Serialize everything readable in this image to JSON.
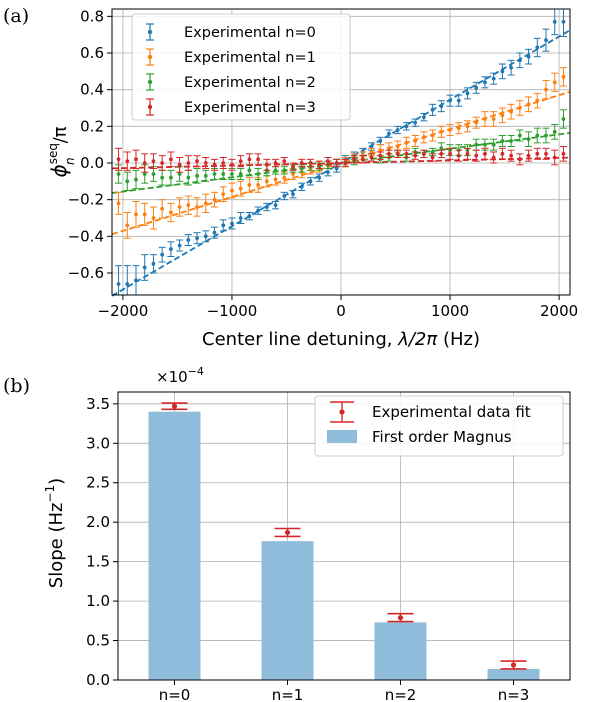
{
  "panel_a_label": "(a)",
  "panel_b_label": "(b)",
  "colors": {
    "n0": "#1f77b4",
    "n1": "#ff7f0e",
    "n2": "#2ca02c",
    "n3": "#d62728",
    "bar": "#8fbcdb",
    "grid": "#b0b0b0"
  },
  "chart_data": [
    {
      "type": "scatter",
      "xlabel_text": "Center line detuning, ",
      "xlabel_math": "λ/2π",
      "xlabel_unit": " (Hz)",
      "ylabel_main": "ϕ",
      "ylabel_sup": "seq",
      "ylabel_sub": "n",
      "ylabel_tail": "/π",
      "xlim": [
        -2100,
        2100
      ],
      "ylim": [
        -0.72,
        0.84
      ],
      "xticks": [
        -2000,
        -1000,
        0,
        1000,
        2000
      ],
      "xtick_labels": [
        "−2000",
        "−1000",
        "0",
        "1000",
        "2000"
      ],
      "yticks": [
        -0.6,
        -0.4,
        -0.2,
        0.0,
        0.2,
        0.4,
        0.6,
        0.8
      ],
      "ytick_labels": [
        "−0.6",
        "−0.4",
        "−0.2",
        "0.0",
        "0.2",
        "0.4",
        "0.6",
        "0.8"
      ],
      "grid": true,
      "legend_position": "top-left",
      "series": [
        {
          "name": "Experimental n=0",
          "color": "#1f77b4",
          "slope": 0.000345,
          "x": [
            -2040,
            -1960,
            -1880,
            -1800,
            -1720,
            -1640,
            -1560,
            -1480,
            -1400,
            -1320,
            -1240,
            -1160,
            -1080,
            -1000,
            -920,
            -840,
            -760,
            -680,
            -600,
            -520,
            -440,
            -360,
            -280,
            -200,
            -120,
            -40,
            40,
            120,
            200,
            280,
            360,
            440,
            520,
            600,
            680,
            760,
            840,
            920,
            1000,
            1080,
            1160,
            1240,
            1320,
            1400,
            1480,
            1560,
            1640,
            1720,
            1800,
            1880,
            1960,
            2040
          ],
          "y": [
            -0.66,
            -0.66,
            -0.64,
            -0.57,
            -0.55,
            -0.5,
            -0.47,
            -0.45,
            -0.42,
            -0.41,
            -0.4,
            -0.38,
            -0.34,
            -0.33,
            -0.3,
            -0.29,
            -0.26,
            -0.24,
            -0.23,
            -0.18,
            -0.17,
            -0.13,
            -0.1,
            -0.08,
            -0.05,
            -0.03,
            0.02,
            0.04,
            0.06,
            0.09,
            0.12,
            0.16,
            0.18,
            0.2,
            0.22,
            0.25,
            0.29,
            0.31,
            0.34,
            0.34,
            0.38,
            0.41,
            0.44,
            0.46,
            0.5,
            0.52,
            0.56,
            0.58,
            0.63,
            0.67,
            0.77,
            0.77
          ],
          "err": [
            0.1,
            0.1,
            0.08,
            0.07,
            0.05,
            0.04,
            0.04,
            0.03,
            0.03,
            0.03,
            0.03,
            0.03,
            0.03,
            0.03,
            0.03,
            0.02,
            0.02,
            0.02,
            0.02,
            0.02,
            0.02,
            0.02,
            0.02,
            0.02,
            0.02,
            0.02,
            0.02,
            0.02,
            0.02,
            0.02,
            0.02,
            0.02,
            0.02,
            0.02,
            0.02,
            0.02,
            0.03,
            0.03,
            0.03,
            0.03,
            0.03,
            0.03,
            0.03,
            0.03,
            0.04,
            0.04,
            0.04,
            0.04,
            0.05,
            0.06,
            0.07,
            0.08
          ]
        },
        {
          "name": "Experimental n=1",
          "color": "#ff7f0e",
          "slope": 0.000185,
          "x": [
            -2040,
            -1960,
            -1880,
            -1800,
            -1720,
            -1640,
            -1560,
            -1480,
            -1400,
            -1320,
            -1240,
            -1160,
            -1080,
            -1000,
            -920,
            -840,
            -760,
            -680,
            -600,
            -520,
            -440,
            -360,
            -280,
            -200,
            -120,
            -40,
            40,
            120,
            200,
            280,
            360,
            440,
            520,
            600,
            680,
            760,
            840,
            920,
            1000,
            1080,
            1160,
            1240,
            1320,
            1400,
            1480,
            1560,
            1640,
            1720,
            1800,
            1880,
            1960,
            2040
          ],
          "y": [
            -0.22,
            -0.34,
            -0.28,
            -0.28,
            -0.3,
            -0.25,
            -0.27,
            -0.24,
            -0.23,
            -0.24,
            -0.22,
            -0.2,
            -0.17,
            -0.15,
            -0.14,
            -0.12,
            -0.12,
            -0.1,
            -0.09,
            -0.08,
            -0.06,
            -0.05,
            -0.03,
            -0.02,
            -0.01,
            0.0,
            0.01,
            0.03,
            0.04,
            0.06,
            0.07,
            0.08,
            0.09,
            0.11,
            0.12,
            0.14,
            0.15,
            0.17,
            0.18,
            0.19,
            0.2,
            0.22,
            0.24,
            0.24,
            0.26,
            0.28,
            0.3,
            0.32,
            0.34,
            0.4,
            0.44,
            0.47
          ],
          "err": [
            0.06,
            0.07,
            0.07,
            0.06,
            0.06,
            0.05,
            0.05,
            0.05,
            0.05,
            0.05,
            0.05,
            0.04,
            0.04,
            0.04,
            0.04,
            0.04,
            0.04,
            0.03,
            0.03,
            0.03,
            0.03,
            0.03,
            0.03,
            0.03,
            0.02,
            0.02,
            0.02,
            0.02,
            0.02,
            0.02,
            0.03,
            0.03,
            0.03,
            0.03,
            0.03,
            0.03,
            0.03,
            0.03,
            0.03,
            0.03,
            0.03,
            0.03,
            0.04,
            0.04,
            0.04,
            0.04,
            0.04,
            0.04,
            0.04,
            0.05,
            0.05,
            0.05
          ]
        },
        {
          "name": "Experimental n=2",
          "color": "#2ca02c",
          "slope": 7.8e-05,
          "x": [
            -2040,
            -1960,
            -1880,
            -1800,
            -1720,
            -1640,
            -1560,
            -1480,
            -1400,
            -1320,
            -1240,
            -1160,
            -1080,
            -1000,
            -920,
            -840,
            -760,
            -680,
            -600,
            -520,
            -440,
            -360,
            -280,
            -200,
            -120,
            -40,
            40,
            120,
            200,
            280,
            360,
            440,
            520,
            600,
            680,
            760,
            840,
            920,
            1000,
            1080,
            1160,
            1240,
            1320,
            1400,
            1480,
            1560,
            1640,
            1720,
            1800,
            1880,
            1960,
            2040
          ],
          "y": [
            -0.06,
            -0.1,
            -0.09,
            -0.06,
            -0.06,
            -0.08,
            -0.08,
            -0.06,
            -0.08,
            -0.07,
            -0.07,
            -0.06,
            -0.06,
            -0.06,
            -0.06,
            -0.04,
            -0.06,
            -0.04,
            -0.04,
            -0.04,
            -0.03,
            -0.03,
            -0.02,
            -0.02,
            -0.01,
            0.0,
            0.0,
            0.01,
            0.02,
            0.03,
            0.02,
            0.03,
            0.05,
            0.03,
            0.06,
            0.05,
            0.06,
            0.08,
            0.07,
            0.07,
            0.07,
            0.1,
            0.1,
            0.1,
            0.12,
            0.12,
            0.15,
            0.13,
            0.15,
            0.15,
            0.17,
            0.24
          ],
          "err": [
            0.05,
            0.05,
            0.05,
            0.05,
            0.04,
            0.04,
            0.04,
            0.04,
            0.04,
            0.04,
            0.03,
            0.03,
            0.03,
            0.03,
            0.03,
            0.03,
            0.03,
            0.03,
            0.02,
            0.02,
            0.02,
            0.02,
            0.02,
            0.02,
            0.02,
            0.02,
            0.02,
            0.02,
            0.02,
            0.02,
            0.02,
            0.02,
            0.02,
            0.02,
            0.02,
            0.02,
            0.02,
            0.03,
            0.03,
            0.03,
            0.03,
            0.03,
            0.03,
            0.03,
            0.03,
            0.03,
            0.03,
            0.04,
            0.04,
            0.04,
            0.04,
            0.05
          ]
        },
        {
          "name": "Experimental n=3",
          "color": "#d62728",
          "slope": 1.4e-05,
          "x": [
            -2040,
            -1960,
            -1880,
            -1800,
            -1720,
            -1640,
            -1560,
            -1480,
            -1400,
            -1320,
            -1240,
            -1160,
            -1080,
            -1000,
            -920,
            -840,
            -760,
            -680,
            -600,
            -520,
            -440,
            -360,
            -280,
            -200,
            -120,
            -40,
            40,
            120,
            200,
            280,
            360,
            440,
            520,
            600,
            680,
            760,
            840,
            920,
            1000,
            1080,
            1160,
            1240,
            1320,
            1400,
            1480,
            1560,
            1640,
            1720,
            1800,
            1880,
            1960,
            2040
          ],
          "y": [
            0.02,
            0.01,
            0.02,
            0.0,
            0.01,
            0.0,
            0.02,
            -0.01,
            0.0,
            0.01,
            0.0,
            -0.01,
            0.0,
            -0.01,
            0.01,
            0.02,
            0.02,
            -0.01,
            0.0,
            0.01,
            -0.02,
            0.0,
            0.0,
            -0.01,
            0.01,
            0.0,
            0.0,
            0.02,
            0.02,
            0.03,
            0.04,
            0.05,
            0.05,
            0.05,
            0.04,
            0.05,
            0.03,
            0.05,
            0.05,
            0.04,
            0.05,
            0.04,
            0.05,
            0.03,
            0.05,
            0.04,
            0.02,
            0.04,
            0.05,
            0.05,
            0.03,
            0.05
          ],
          "err": [
            0.06,
            0.05,
            0.05,
            0.05,
            0.04,
            0.04,
            0.04,
            0.04,
            0.04,
            0.03,
            0.03,
            0.03,
            0.03,
            0.03,
            0.03,
            0.03,
            0.03,
            0.03,
            0.02,
            0.02,
            0.02,
            0.02,
            0.02,
            0.02,
            0.02,
            0.02,
            0.02,
            0.02,
            0.02,
            0.02,
            0.02,
            0.02,
            0.02,
            0.02,
            0.02,
            0.02,
            0.02,
            0.02,
            0.03,
            0.03,
            0.03,
            0.03,
            0.03,
            0.03,
            0.03,
            0.03,
            0.03,
            0.03,
            0.03,
            0.03,
            0.04,
            0.04
          ]
        }
      ]
    },
    {
      "type": "bar",
      "categories": [
        "n=0",
        "n=1",
        "n=2",
        "n=3"
      ],
      "ylabel": "Slope (Hz",
      "ylabel_sup": "−1",
      "ylabel_tail": ")",
      "multiplier_text": "×10",
      "multiplier_exp": "−4",
      "ylim": [
        0,
        3.65
      ],
      "yticks": [
        0.0,
        0.5,
        1.0,
        1.5,
        2.0,
        2.5,
        3.0,
        3.5
      ],
      "ytick_labels": [
        "0.0",
        "0.5",
        "1.0",
        "1.5",
        "2.0",
        "2.5",
        "3.0",
        "3.5"
      ],
      "grid": true,
      "legend_position": "top-right",
      "series": [
        {
          "name": "First order Magnus",
          "kind": "bar",
          "values": [
            3.4,
            1.76,
            0.73,
            0.14
          ]
        },
        {
          "name": "Experimental data fit",
          "kind": "errorbar",
          "values": [
            3.47,
            1.87,
            0.79,
            0.19
          ],
          "err": [
            0.04,
            0.05,
            0.05,
            0.05
          ]
        }
      ]
    }
  ]
}
